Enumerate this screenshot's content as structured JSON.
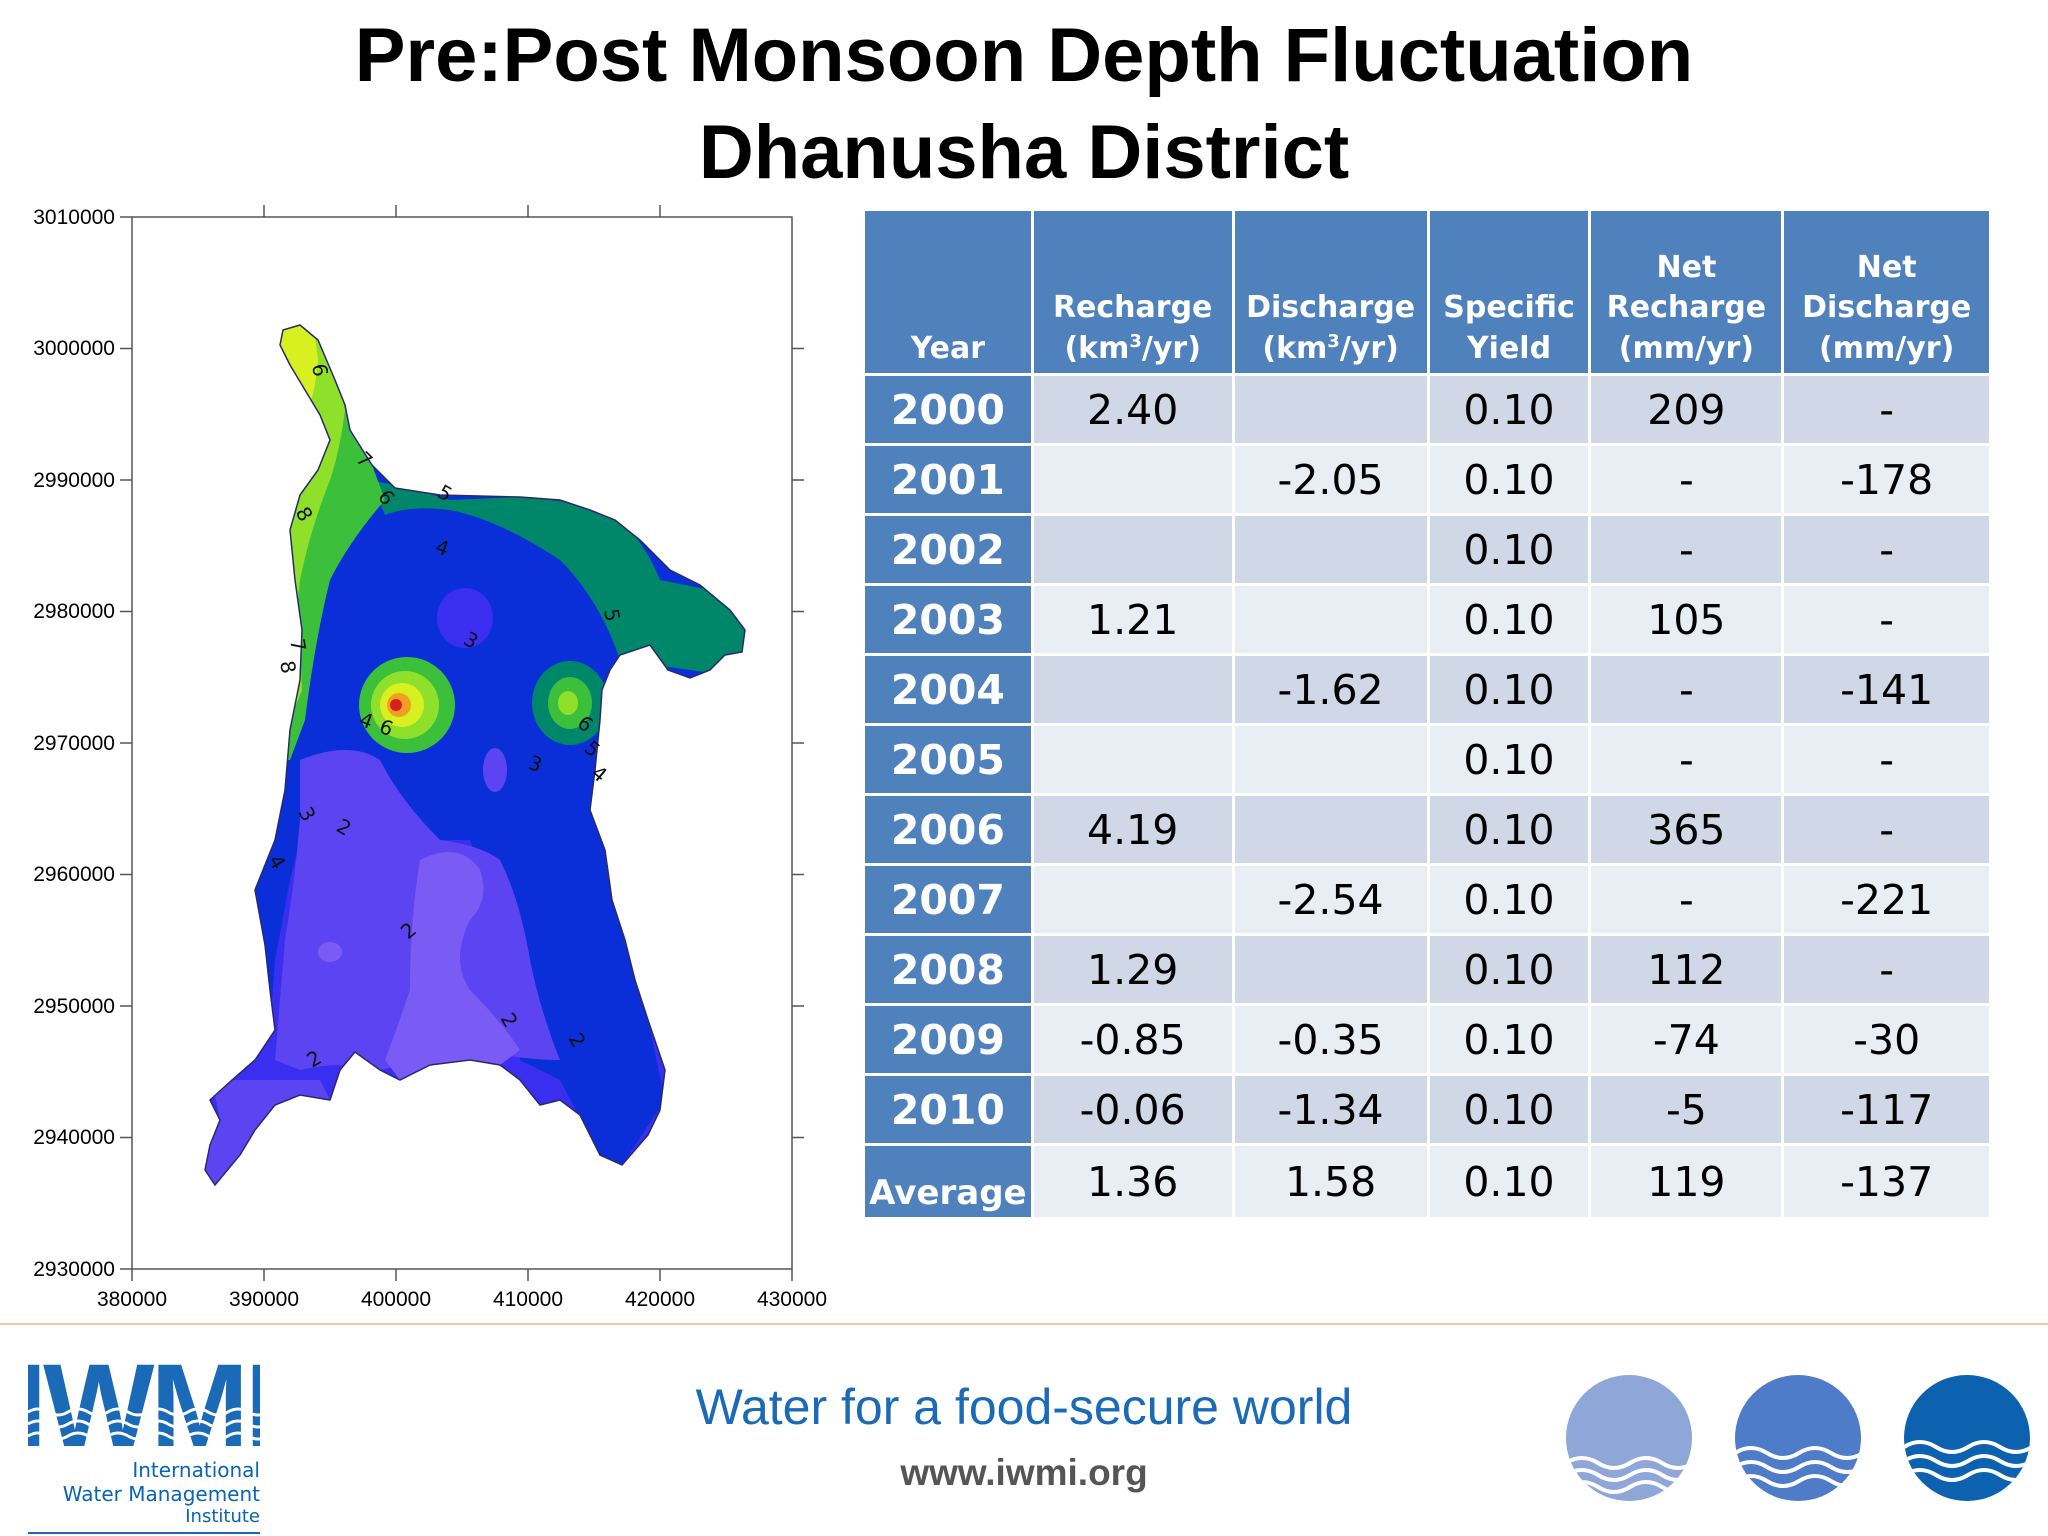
{
  "title": {
    "line1": "Pre:Post Monsoon Depth Fluctuation",
    "line2": "Dhanusha District"
  },
  "map": {
    "y_ticks": [
      "3010000",
      "3000000",
      "2990000",
      "2980000",
      "2970000",
      "2960000",
      "2950000",
      "2940000",
      "2930000"
    ],
    "x_ticks": [
      "380000",
      "390000",
      "400000",
      "410000",
      "420000",
      "430000"
    ],
    "contour_labels": [
      "6",
      "7",
      "8",
      "6",
      "5",
      "4",
      "3",
      "5",
      "7",
      "8",
      "4",
      "6",
      "3",
      "6",
      "5",
      "4",
      "3",
      "2",
      "4",
      "2",
      "2",
      "2",
      "2",
      "3"
    ],
    "colors": {
      "yellow": "#d8f020",
      "light_green": "#8ee02a",
      "green": "#3cc03c",
      "teal": "#00876a",
      "blue": "#0a2fd8",
      "mid_blue": "#3a2ff0",
      "violet": "#5c44f2",
      "light_violet": "#7a5cf4"
    }
  },
  "table": {
    "headers": [
      {
        "pre": "",
        "main": "Year",
        "sup": "",
        "post": ""
      },
      {
        "pre": "",
        "main": "Recharge",
        "sup": "",
        "post": ""
      },
      {
        "pre": "",
        "main": "Discharge",
        "sup": "",
        "post": ""
      },
      {
        "pre": "",
        "main": "Specific",
        "sup": "",
        "post": ""
      },
      {
        "pre": "",
        "main": "Net",
        "sup": "",
        "post": ""
      },
      {
        "pre": "",
        "main": "Net",
        "sup": "",
        "post": ""
      }
    ],
    "header_lines": {
      "recharge_unit_a": "(km",
      "recharge_unit_sup": "3",
      "recharge_unit_b": "/yr)",
      "discharge_unit_a": "(km",
      "discharge_unit_sup": "3",
      "discharge_unit_b": "/yr)",
      "specific_b": "Yield",
      "net_recharge_b": "Recharge",
      "net_recharge_c": "(mm/yr)",
      "net_discharge_b": "Discharge",
      "net_discharge_c": "(mm/yr)"
    },
    "rows": [
      {
        "year": "2000",
        "recharge": "2.40",
        "discharge": "",
        "specific_yield": "0.10",
        "net_recharge": "209",
        "net_discharge": "-"
      },
      {
        "year": "2001",
        "recharge": "",
        "discharge": "-2.05",
        "specific_yield": "0.10",
        "net_recharge": "-",
        "net_discharge": "-178"
      },
      {
        "year": "2002",
        "recharge": "",
        "discharge": "",
        "specific_yield": "0.10",
        "net_recharge": "-",
        "net_discharge": "-"
      },
      {
        "year": "2003",
        "recharge": "1.21",
        "discharge": "",
        "specific_yield": "0.10",
        "net_recharge": "105",
        "net_discharge": "-"
      },
      {
        "year": "2004",
        "recharge": "",
        "discharge": "-1.62",
        "specific_yield": "0.10",
        "net_recharge": "-",
        "net_discharge": "-141"
      },
      {
        "year": "2005",
        "recharge": "",
        "discharge": "",
        "specific_yield": "0.10",
        "net_recharge": "-",
        "net_discharge": "-"
      },
      {
        "year": "2006",
        "recharge": "4.19",
        "discharge": "",
        "specific_yield": "0.10",
        "net_recharge": "365",
        "net_discharge": "-"
      },
      {
        "year": "2007",
        "recharge": "",
        "discharge": "-2.54",
        "specific_yield": "0.10",
        "net_recharge": "-",
        "net_discharge": "-221"
      },
      {
        "year": "2008",
        "recharge": "1.29",
        "discharge": "",
        "specific_yield": "0.10",
        "net_recharge": "112",
        "net_discharge": "-"
      },
      {
        "year": "2009",
        "recharge": "-0.85",
        "discharge": "-0.35",
        "specific_yield": "0.10",
        "net_recharge": "-74",
        "net_discharge": "-30"
      },
      {
        "year": "2010",
        "recharge": "-0.06",
        "discharge": "-1.34",
        "specific_yield": "0.10",
        "net_recharge": "-5",
        "net_discharge": "-117"
      },
      {
        "year": "Average",
        "recharge": "1.36",
        "discharge": "1.58",
        "specific_yield": "0.10",
        "net_recharge": "119",
        "net_discharge": "-137"
      }
    ]
  },
  "footer": {
    "logo_acronym": "IWMI",
    "logo_line1": "International",
    "logo_line2": "Water Management",
    "logo_line3": "Institute",
    "tagline": "Water for a food-secure world",
    "website": "www.iwmi.org",
    "brand_color": "#1a6ab8"
  }
}
